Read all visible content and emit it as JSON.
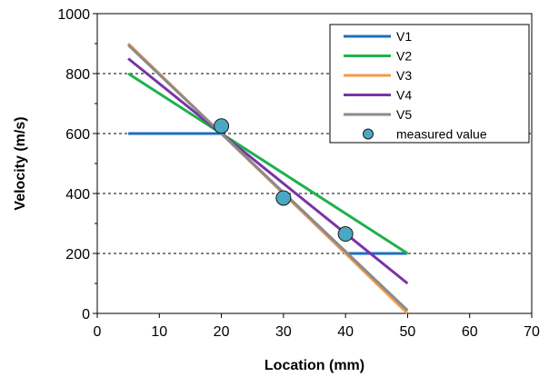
{
  "chart_data": {
    "type": "line",
    "xlabel": "Location (mm)",
    "ylabel": "Velocity (m/s)",
    "xlim": [
      0,
      70
    ],
    "ylim": [
      0,
      1000
    ],
    "xticks": [
      "0",
      "10",
      "20",
      "30",
      "40",
      "50",
      "60",
      "70"
    ],
    "yticks": [
      "0",
      "200",
      "400",
      "600",
      "800",
      "1000"
    ],
    "grid": "horizontal-dashed",
    "legend_position": "top-right",
    "series": [
      {
        "name": "V1",
        "color": "#1f6fbf",
        "marker": "none",
        "points": [
          [
            5,
            600
          ],
          [
            20,
            600
          ],
          [
            40,
            200
          ],
          [
            50,
            200
          ]
        ]
      },
      {
        "name": "V2",
        "color": "#1db34a",
        "marker": "none",
        "points": [
          [
            5,
            800
          ],
          [
            20,
            600
          ],
          [
            50,
            200
          ]
        ]
      },
      {
        "name": "V3",
        "color": "#f39a4a",
        "marker": "none",
        "points": [
          [
            5,
            900
          ],
          [
            50,
            0
          ]
        ]
      },
      {
        "name": "V4",
        "color": "#7a33a6",
        "marker": "none",
        "points": [
          [
            5,
            850
          ],
          [
            50,
            100
          ]
        ]
      },
      {
        "name": "V5",
        "color": "#8a8a8a",
        "marker": "none",
        "points": [
          [
            5,
            895
          ],
          [
            50,
            10
          ]
        ]
      },
      {
        "name": "measured value",
        "color": "#4aa8c4",
        "marker": "circle",
        "points": [
          [
            20,
            625
          ],
          [
            30,
            385
          ],
          [
            40,
            265
          ]
        ]
      }
    ]
  }
}
